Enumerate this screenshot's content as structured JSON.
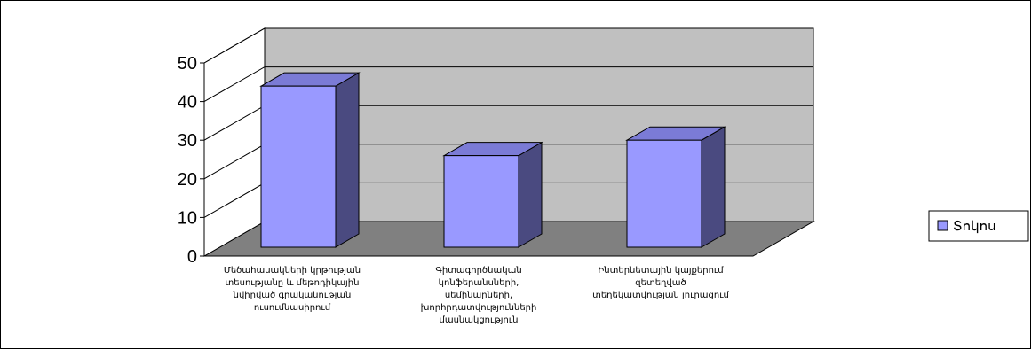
{
  "chart_data": {
    "type": "bar",
    "categories": [
      "Մեծահասակների կրթության տեսությանը և մեթոդիկային նվիրված գրականության ուսումնասիրում",
      "Գիտագործնական կոնֆերանսների, սեմինարների, խորհրդատվությունների մասնակցություն",
      "Ինտերնետային կայքերում զետեղված տեղեկատվության յուրացում"
    ],
    "category_lines": [
      [
        "Մեծահասակների կրթության",
        "տեսությանը և մեթոդիկային",
        "նվիրված գրականության",
        "ուսումնասիրում"
      ],
      [
        "Գիտագործնական",
        "կոնֆերանսների,",
        "սեմինարների,",
        "խորհրդատվությունների",
        "մասնակցություն"
      ],
      [
        "Ինտերնետային կայքերում",
        "զետեղված",
        "տեղեկատվության յուրացում"
      ]
    ],
    "series": [
      {
        "name": "Տոկոս",
        "values": [
          44,
          26,
          30
        ]
      }
    ],
    "ylim": [
      0,
      50
    ],
    "yticks": [
      "0",
      "10",
      "20",
      "30",
      "40",
      "50"
    ],
    "legend_position": "right",
    "grid": true,
    "colors": {
      "bar_front": "#9999ff",
      "bar_side": "#4a4a80",
      "bar_top": "#7b7bd6",
      "wall": "#c0c0c0",
      "floor": "#808080",
      "gridline": "#000000"
    }
  }
}
